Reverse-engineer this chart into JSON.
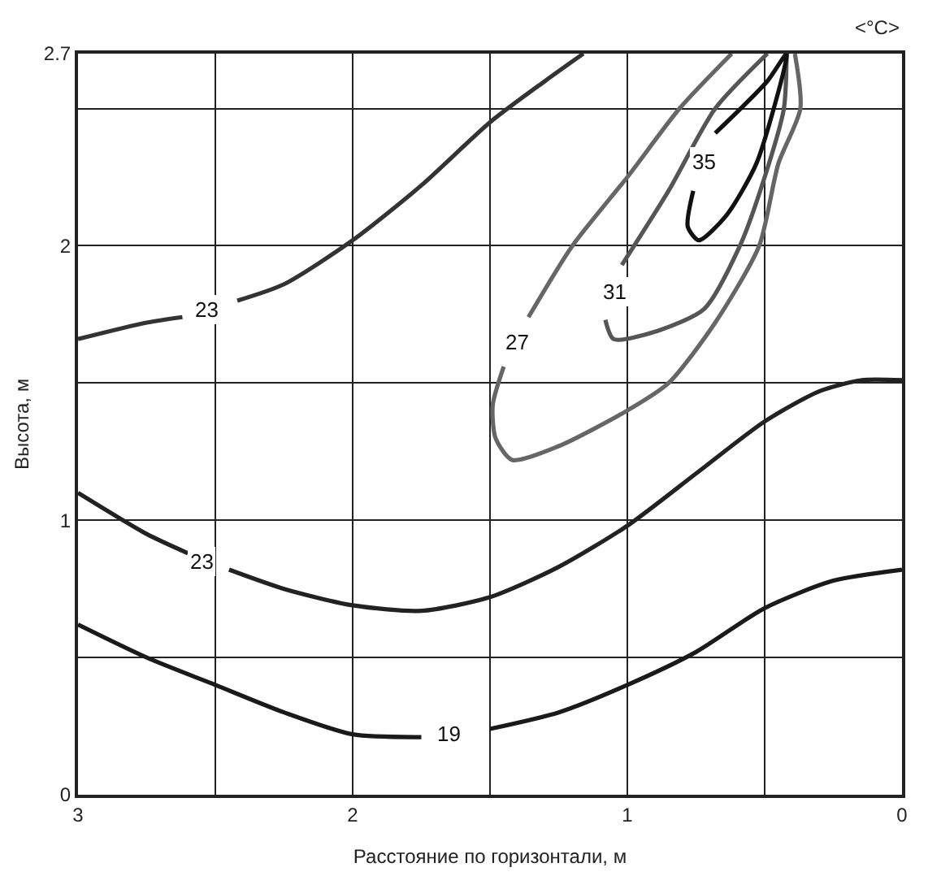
{
  "chart_data": {
    "type": "line",
    "xlabel": "Расстояние по горизонтали, м",
    "ylabel": "Высота, м",
    "xlim": [
      3,
      0
    ],
    "ylim": [
      0,
      2.7
    ],
    "xticks": [
      3,
      {
        "value": 2.5,
        "label": null
      },
      2,
      {
        "value": 1.5,
        "label": null
      },
      1,
      {
        "value": 0.5,
        "label": null
      },
      0
    ],
    "yticks": [
      0,
      {
        "value": 0.5,
        "label": null
      },
      1,
      {
        "value": 1.5,
        "label": null
      },
      2,
      {
        "value": 2.5,
        "label": null
      },
      2.7
    ],
    "grid": true,
    "legend": false,
    "marker": "none",
    "line_style": "solid",
    "series": [
      {
        "name": "19",
        "color": "#1a1a1a",
        "x": [
          3,
          2.75,
          2.5,
          2.25,
          2,
          1.75,
          1.65,
          1.5,
          1.25,
          1,
          0.75,
          0.5,
          0.25,
          0
        ],
        "values": [
          0.62,
          0.5,
          0.4,
          0.3,
          0.22,
          0.21,
          null,
          0.24,
          0.3,
          0.4,
          0.52,
          0.68,
          0.78,
          0.82
        ]
      },
      {
        "name": "23",
        "color": "#222222",
        "x": [
          3,
          2.75,
          2.6,
          2.55,
          2.45,
          2.25,
          2,
          1.75,
          1.5,
          1.25,
          1,
          0.75,
          0.5,
          0.3,
          0.15,
          0
        ],
        "values": [
          1.1,
          0.95,
          0.88,
          null,
          0.82,
          0.75,
          0.69,
          0.67,
          0.72,
          0.83,
          0.98,
          1.17,
          1.36,
          1.47,
          1.51,
          1.51
        ]
      },
      {
        "name": "23",
        "color": "#333333",
        "x": [
          3,
          2.75,
          2.62,
          2.53,
          2.42,
          2.25,
          2,
          1.75,
          1.5,
          1.3,
          1.16
        ],
        "values": [
          1.66,
          1.72,
          1.74,
          null,
          1.8,
          1.86,
          2.02,
          2.22,
          2.45,
          2.6,
          2.7
        ]
      },
      {
        "name": "27",
        "color": "#666666",
        "x": [
          0.62,
          0.81,
          1.0,
          1.2,
          1.36,
          1.4,
          1.45,
          1.49,
          1.48,
          1.42,
          1.25,
          1.0,
          0.85,
          0.68,
          0.52,
          0.45,
          0.37,
          0.39
        ],
        "values": [
          2.7,
          2.5,
          2.25,
          2.0,
          1.74,
          null,
          1.56,
          1.42,
          1.3,
          1.22,
          1.27,
          1.4,
          1.5,
          1.72,
          2.0,
          2.3,
          2.5,
          2.7
        ]
      },
      {
        "name": "31",
        "color": "#555555",
        "x": [
          0.49,
          0.68,
          0.85,
          1.02,
          1.05,
          1.08,
          1.05,
          0.89,
          0.72,
          0.59,
          0.5,
          0.43,
          0.42
        ],
        "values": [
          2.7,
          2.5,
          2.2,
          1.93,
          null,
          1.73,
          1.66,
          1.69,
          1.77,
          2.0,
          2.25,
          2.5,
          2.7
        ]
      },
      {
        "name": "35",
        "color": "#111111",
        "x": [
          0.68,
          0.49,
          0.42,
          0.43,
          0.53,
          0.64,
          0.74,
          0.78,
          0.76
        ],
        "values": [
          2.41,
          2.6,
          2.7,
          2.64,
          2.3,
          2.11,
          2.02,
          2.07,
          2.2
        ]
      }
    ],
    "annotations": [
      "<°C>"
    ]
  }
}
